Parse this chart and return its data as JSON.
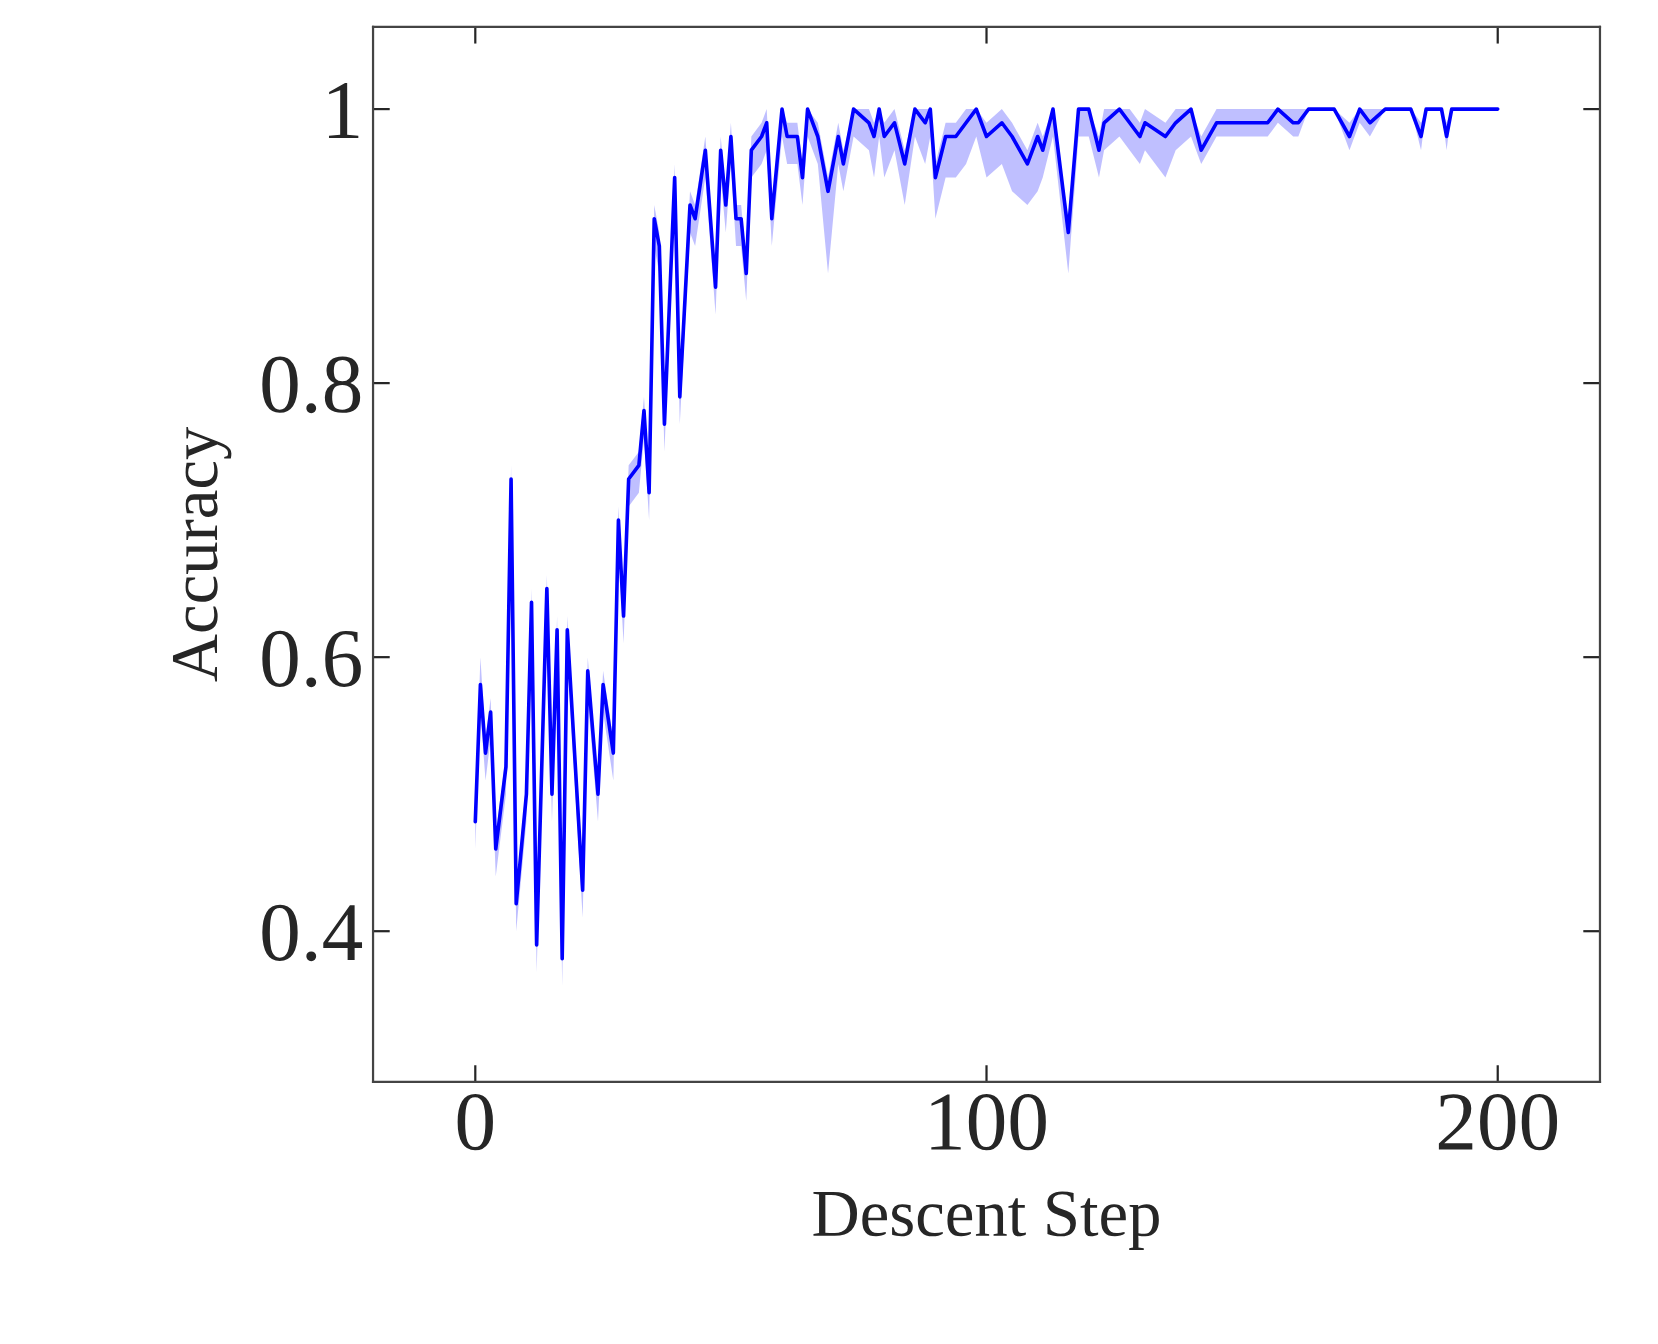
{
  "chart_data": {
    "type": "line",
    "xlabel": "Descent Step",
    "ylabel": "Accuracy",
    "xlim": [
      -20,
      220
    ],
    "ylim": [
      0.29,
      1.06
    ],
    "xticks": [
      0,
      100,
      200
    ],
    "yticks": [
      0.4,
      0.6,
      0.8,
      {
        "value": 1.0,
        "label": "1"
      }
    ],
    "grid": false,
    "series": [
      {
        "color": "#0000ff",
        "x": [
          0,
          1,
          2,
          3,
          4,
          6,
          7,
          8,
          10,
          11,
          12,
          14,
          15,
          16,
          17,
          18,
          21,
          22,
          24,
          25,
          27,
          28,
          29,
          30,
          32,
          33,
          34,
          35,
          36,
          37,
          39,
          40,
          42,
          43,
          45,
          47,
          48,
          49,
          50,
          51,
          52,
          53,
          54,
          56,
          57,
          58,
          60,
          61,
          63,
          64,
          65,
          67,
          69,
          71,
          72,
          74,
          77,
          78,
          79,
          80,
          82,
          84,
          86,
          88,
          89,
          90,
          92,
          94,
          96,
          98,
          100,
          103,
          105,
          108,
          110,
          111,
          113,
          116,
          118,
          120,
          122,
          123,
          126,
          128,
          130,
          131,
          135,
          137,
          140,
          142,
          145,
          147,
          150,
          152,
          155,
          157,
          160,
          161,
          163,
          168,
          171,
          173,
          175,
          178,
          183,
          185,
          186,
          189,
          190,
          191,
          200
        ],
        "values": [
          0.48,
          0.58,
          0.53,
          0.56,
          0.46,
          0.52,
          0.73,
          0.42,
          0.5,
          0.64,
          0.39,
          0.65,
          0.5,
          0.62,
          0.38,
          0.62,
          0.43,
          0.59,
          0.5,
          0.58,
          0.53,
          0.7,
          0.63,
          0.73,
          0.74,
          0.78,
          0.72,
          0.92,
          0.9,
          0.77,
          0.95,
          0.79,
          0.93,
          0.92,
          0.97,
          0.87,
          0.97,
          0.93,
          0.98,
          0.92,
          0.92,
          0.88,
          0.97,
          0.98,
          0.99,
          0.92,
          1.0,
          0.98,
          0.98,
          0.95,
          1.0,
          0.98,
          0.94,
          0.98,
          0.96,
          1.0,
          0.99,
          0.98,
          1.0,
          0.98,
          0.99,
          0.96,
          1.0,
          0.99,
          1.0,
          0.95,
          0.98,
          0.98,
          0.99,
          1.0,
          0.98,
          0.99,
          0.98,
          0.96,
          0.98,
          0.97,
          1.0,
          0.91,
          1.0,
          1.0,
          0.97,
          0.99,
          1.0,
          0.99,
          0.98,
          0.99,
          0.98,
          0.99,
          1.0,
          0.97,
          0.99,
          0.99,
          0.99,
          0.99,
          0.99,
          1.0,
          0.99,
          0.99,
          1.0,
          1.0,
          0.98,
          1.0,
          0.99,
          1.0,
          1.0,
          0.98,
          1.0,
          1.0,
          0.98,
          1.0,
          1.0
        ],
        "lower": [
          0.46,
          0.56,
          0.51,
          0.54,
          0.44,
          0.5,
          0.71,
          0.4,
          0.48,
          0.62,
          0.37,
          0.63,
          0.48,
          0.6,
          0.36,
          0.6,
          0.41,
          0.57,
          0.48,
          0.56,
          0.51,
          0.68,
          0.61,
          0.71,
          0.72,
          0.76,
          0.7,
          0.9,
          0.88,
          0.75,
          0.93,
          0.77,
          0.91,
          0.9,
          0.95,
          0.85,
          0.95,
          0.91,
          0.96,
          0.9,
          0.9,
          0.86,
          0.95,
          0.96,
          0.97,
          0.9,
          0.98,
          0.96,
          0.96,
          0.93,
          0.98,
          0.96,
          0.88,
          0.96,
          0.94,
          0.98,
          0.97,
          0.95,
          0.98,
          0.95,
          0.97,
          0.93,
          0.98,
          0.96,
          0.98,
          0.92,
          0.95,
          0.95,
          0.96,
          0.98,
          0.95,
          0.96,
          0.94,
          0.93,
          0.94,
          0.95,
          0.98,
          0.88,
          0.98,
          0.98,
          0.95,
          0.97,
          0.98,
          0.97,
          0.96,
          0.97,
          0.95,
          0.97,
          0.98,
          0.96,
          0.98,
          0.98,
          0.98,
          0.98,
          0.98,
          0.99,
          0.98,
          0.98,
          1.0,
          1.0,
          0.97,
          0.99,
          0.98,
          1.0,
          1.0,
          0.97,
          1.0,
          1.0,
          0.97,
          1.0,
          1.0
        ],
        "upper": [
          0.49,
          0.6,
          0.54,
          0.57,
          0.47,
          0.53,
          0.74,
          0.43,
          0.51,
          0.65,
          0.4,
          0.66,
          0.51,
          0.63,
          0.39,
          0.63,
          0.44,
          0.6,
          0.51,
          0.59,
          0.54,
          0.71,
          0.64,
          0.74,
          0.75,
          0.79,
          0.73,
          0.93,
          0.91,
          0.78,
          0.96,
          0.8,
          0.94,
          0.93,
          0.98,
          0.88,
          0.98,
          0.94,
          0.99,
          0.93,
          0.93,
          0.89,
          0.98,
          0.99,
          1.0,
          0.93,
          1.0,
          0.99,
          0.99,
          0.96,
          1.0,
          0.99,
          0.95,
          0.99,
          0.97,
          1.0,
          1.0,
          0.99,
          1.0,
          0.99,
          1.0,
          0.97,
          1.0,
          1.0,
          1.0,
          0.96,
          0.99,
          0.99,
          1.0,
          1.0,
          0.99,
          1.0,
          0.99,
          0.97,
          0.99,
          0.98,
          1.0,
          0.92,
          1.0,
          1.0,
          0.98,
          1.0,
          1.0,
          1.0,
          0.99,
          1.0,
          0.99,
          1.0,
          1.0,
          0.98,
          1.0,
          1.0,
          1.0,
          1.0,
          1.0,
          1.0,
          1.0,
          1.0,
          1.0,
          1.0,
          0.99,
          1.0,
          1.0,
          1.0,
          1.0,
          0.99,
          1.0,
          1.0,
          0.99,
          1.0,
          1.0
        ]
      }
    ]
  }
}
